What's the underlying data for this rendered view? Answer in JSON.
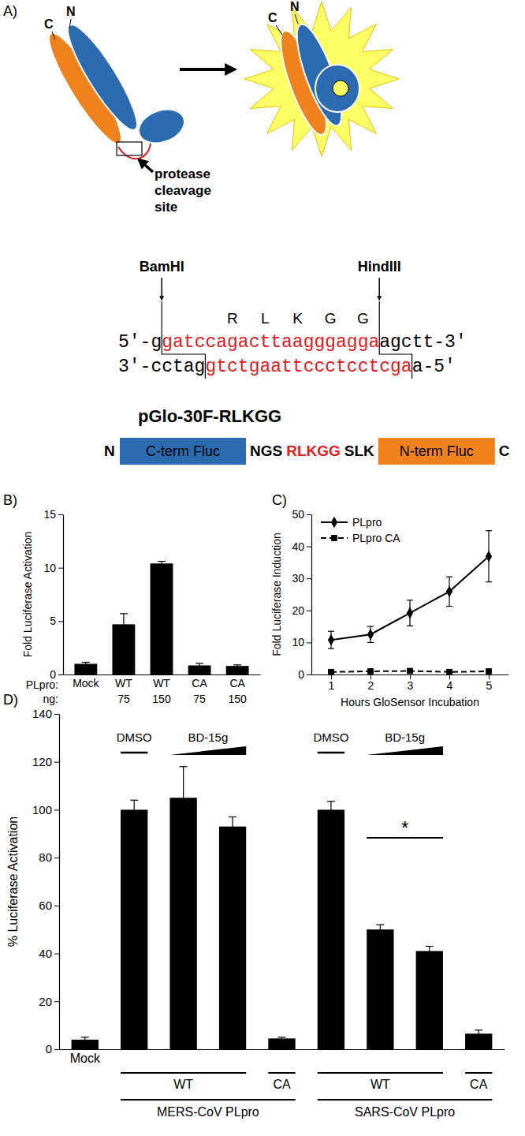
{
  "diagram": {
    "label": "A)",
    "cartoon_left": {
      "n": "N",
      "c": "C"
    },
    "cartoon_right": {
      "n": "N",
      "c": "C"
    },
    "site_label": [
      "protease",
      "cleavage",
      "site"
    ],
    "enzymes": [
      "BamHI",
      "HindIII"
    ],
    "peptide": [
      "R",
      "L",
      "K",
      "G",
      "G"
    ],
    "top_strand": [
      "5'-g",
      "gatccagacttaagggagga",
      "agctt-3'"
    ],
    "bottom_strand": [
      "3'-cctag",
      "gtctgaattccctcctcga",
      "a-5'"
    ],
    "construct": {
      "name": "pGlo-30F-RLKGG",
      "parts": [
        "N",
        "C-term Fluc",
        "NGS",
        "RLKGG",
        "SLK",
        "N-term Fluc",
        "C"
      ]
    }
  },
  "chart_data": [
    {
      "type": "bar",
      "title": "B)",
      "ylabel": "Fold Luciferase Activation",
      "row_labels": [
        "PLpro:",
        "ng:"
      ],
      "categories": [
        "Mock",
        "WT",
        "WT",
        "CA",
        "CA"
      ],
      "doses": [
        null,
        75,
        150,
        75,
        150
      ],
      "values": [
        1.0,
        4.7,
        10.4,
        0.85,
        0.8
      ],
      "errors": [
        0.15,
        1.0,
        0.2,
        0.2,
        0.1
      ],
      "color": "#000000",
      "ylim": [
        0,
        15
      ],
      "yticks": [
        0,
        5,
        10,
        15
      ]
    },
    {
      "type": "line",
      "title": "C)",
      "xlabel": "Hours GloSensor Incubation",
      "ylabel": "Fold Luciferase Induction",
      "x": [
        1,
        2,
        3,
        4,
        5
      ],
      "xlim": [
        0.5,
        5.5
      ],
      "xticks": [
        1,
        2,
        3,
        4,
        5
      ],
      "ylim": [
        0,
        50
      ],
      "yticks": [
        0,
        10,
        20,
        30,
        40,
        50
      ],
      "legend": "upper left",
      "series": [
        {
          "name": "PLpro",
          "color": "#000000",
          "marker": "diamond",
          "line_style": "solid",
          "values": [
            10.8,
            12.5,
            19.2,
            25.9,
            36.9
          ],
          "errors": [
            2.7,
            2.5,
            4.0,
            4.6,
            8.0
          ]
        },
        {
          "name": "PLpro CA",
          "color": "#000000",
          "marker": "square",
          "line_style": "dashed",
          "values": [
            0.8,
            1.0,
            1.1,
            0.8,
            1.0
          ],
          "errors": [
            0.1,
            0.1,
            0.1,
            0.1,
            0.1
          ]
        }
      ]
    },
    {
      "type": "bar",
      "title": "D)",
      "ylabel": "% Luciferase Activation",
      "categories": [
        "Mock",
        null,
        null,
        null,
        null,
        null,
        null,
        null,
        null
      ],
      "values": [
        4,
        100,
        105,
        93,
        4.5,
        100,
        50,
        41,
        6.5
      ],
      "errors": [
        1,
        4,
        13,
        4,
        0.5,
        3.5,
        2,
        2,
        1.5
      ],
      "color": "#000000",
      "ylim": [
        0,
        140
      ],
      "yticks": [
        0,
        20,
        40,
        60,
        80,
        100,
        120,
        140
      ],
      "treatments": [
        "DMSO",
        "BD-15g",
        "DMSO",
        "BD-15g"
      ],
      "significance": "*",
      "enzymes": [
        "WT",
        "CA",
        "WT",
        "CA"
      ],
      "viruses": [
        "MERS-CoV PLpro",
        "SARS-CoV PLpro"
      ]
    }
  ]
}
